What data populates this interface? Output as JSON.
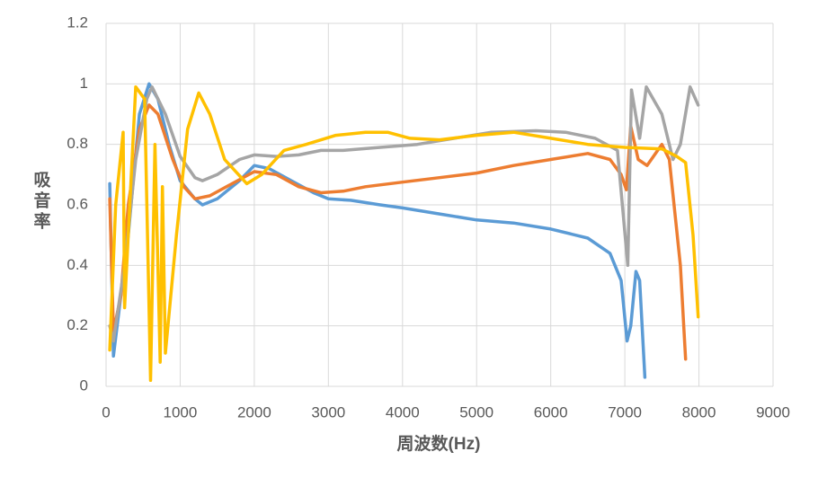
{
  "chart_data": {
    "type": "line",
    "x_label": "周波数(Hz)",
    "y_label": "吸音率",
    "xlim": [
      0,
      9000
    ],
    "xticks": [
      0,
      1000,
      2000,
      3000,
      4000,
      5000,
      6000,
      7000,
      8000,
      9000
    ],
    "ylim": [
      0,
      1.2
    ],
    "yticks": [
      0,
      0.2,
      0.4,
      0.6,
      0.8,
      1,
      1.2
    ],
    "grid": true,
    "series": [
      {
        "color": "#5b9bd5",
        "x": [
          50,
          100,
          300,
          450,
          580,
          700,
          850,
          1000,
          1200,
          1300,
          1500,
          1800,
          2000,
          2200,
          2500,
          2800,
          3000,
          3300,
          3700,
          4000,
          4500,
          5000,
          5500,
          6000,
          6500,
          6800,
          6950,
          7030,
          7080,
          7150,
          7200,
          7270
        ],
        "values": [
          0.67,
          0.1,
          0.5,
          0.9,
          1.0,
          0.95,
          0.8,
          0.68,
          0.62,
          0.6,
          0.62,
          0.68,
          0.73,
          0.72,
          0.68,
          0.64,
          0.62,
          0.615,
          0.6,
          0.59,
          0.57,
          0.55,
          0.54,
          0.52,
          0.49,
          0.44,
          0.35,
          0.15,
          0.2,
          0.38,
          0.35,
          0.03
        ]
      },
      {
        "color": "#ed7d31",
        "x": [
          50,
          100,
          200,
          300,
          450,
          580,
          700,
          900,
          1050,
          1200,
          1400,
          1700,
          2000,
          2300,
          2600,
          2900,
          3200,
          3500,
          4000,
          4500,
          5000,
          5500,
          6000,
          6500,
          6800,
          6950,
          7020,
          7080,
          7180,
          7300,
          7500,
          7600,
          7750,
          7820
        ],
        "values": [
          0.62,
          0.18,
          0.3,
          0.6,
          0.85,
          0.93,
          0.9,
          0.75,
          0.66,
          0.62,
          0.63,
          0.67,
          0.71,
          0.7,
          0.66,
          0.64,
          0.645,
          0.66,
          0.675,
          0.69,
          0.705,
          0.73,
          0.75,
          0.77,
          0.75,
          0.7,
          0.65,
          0.86,
          0.75,
          0.73,
          0.8,
          0.75,
          0.4,
          0.09
        ]
      },
      {
        "color": "#a5a5a5",
        "x": [
          50,
          100,
          250,
          400,
          550,
          620,
          800,
          1000,
          1200,
          1300,
          1500,
          1800,
          2000,
          2300,
          2600,
          2900,
          3200,
          3700,
          4200,
          4700,
          5200,
          5800,
          6200,
          6600,
          6900,
          7040,
          7090,
          7200,
          7290,
          7500,
          7650,
          7750,
          7880,
          7990
        ],
        "values": [
          0.2,
          0.15,
          0.4,
          0.75,
          0.95,
          0.99,
          0.9,
          0.76,
          0.69,
          0.68,
          0.7,
          0.75,
          0.765,
          0.76,
          0.765,
          0.78,
          0.78,
          0.79,
          0.8,
          0.82,
          0.84,
          0.845,
          0.84,
          0.82,
          0.78,
          0.4,
          0.98,
          0.82,
          0.99,
          0.9,
          0.75,
          0.8,
          0.99,
          0.93
        ]
      },
      {
        "color": "#ffc000",
        "x": [
          50,
          130,
          230,
          250,
          400,
          520,
          600,
          660,
          730,
          760,
          800,
          950,
          1100,
          1250,
          1400,
          1600,
          1900,
          2100,
          2400,
          2700,
          3100,
          3500,
          3800,
          4100,
          4500,
          5000,
          5500,
          6000,
          6500,
          7000,
          7500,
          7700,
          7820,
          7920,
          7990
        ],
        "values": [
          0.12,
          0.6,
          0.84,
          0.26,
          0.99,
          0.95,
          0.02,
          0.8,
          0.08,
          0.66,
          0.11,
          0.5,
          0.85,
          0.97,
          0.9,
          0.75,
          0.67,
          0.7,
          0.78,
          0.8,
          0.83,
          0.84,
          0.84,
          0.82,
          0.815,
          0.83,
          0.84,
          0.82,
          0.8,
          0.79,
          0.785,
          0.76,
          0.74,
          0.5,
          0.23
        ]
      }
    ]
  }
}
